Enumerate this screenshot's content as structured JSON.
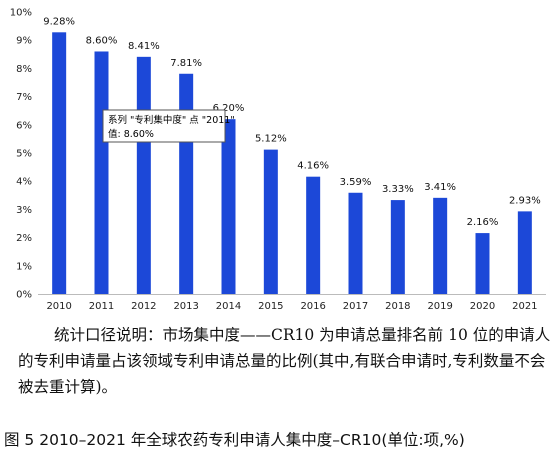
{
  "chart_data": {
    "type": "bar",
    "categories": [
      "2010",
      "2011",
      "2012",
      "2013",
      "2014",
      "2015",
      "2016",
      "2017",
      "2018",
      "2019",
      "2020",
      "2021"
    ],
    "values": [
      9.28,
      8.6,
      8.41,
      7.81,
      6.2,
      5.12,
      4.16,
      3.59,
      3.33,
      3.41,
      2.16,
      2.93
    ],
    "data_labels": [
      "9.28%",
      "8.60%",
      "8.41%",
      "7.81%",
      "6.20%",
      "5.12%",
      "4.16%",
      "3.59%",
      "3.33%",
      "3.41%",
      "2.16%",
      "2.93%"
    ],
    "ylim": [
      0,
      10
    ],
    "yticks": [
      "0%",
      "1%",
      "2%",
      "3%",
      "4%",
      "5%",
      "6%",
      "7%",
      "8%",
      "9%",
      "10%"
    ],
    "grid": false,
    "bar_color": "#1c48d8",
    "tooltip": {
      "line1": "系列 \"专利集中度\" 点 \"2011\"",
      "line2": "值: 8.60%"
    }
  },
  "note": "统计口径说明：市场集中度——CR10 为申请总量排名前 10 位的申请人的专利申请量占该领域专利申请总量的比例(其中,有联合申请时,专利数量不会被去重计算)。",
  "caption": "图 5  2010–2021 年全球农药专利申请人集中度–CR10(单位:项,%)"
}
